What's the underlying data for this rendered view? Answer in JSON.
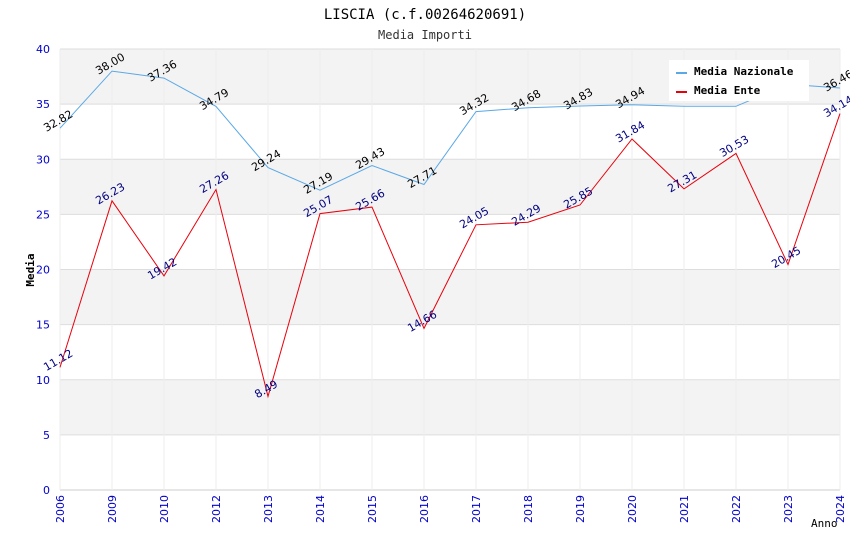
{
  "chart_data": {
    "type": "line",
    "title": "LISCIA (c.f.00264620691)",
    "subtitle": "Media Importi",
    "xlabel": "Anno",
    "ylabel": "Media",
    "ylim": [
      0,
      40
    ],
    "yticks": [
      "0",
      "5",
      "10",
      "15",
      "20",
      "25",
      "30",
      "35",
      "40"
    ],
    "categories": [
      "2006",
      "2009",
      "2010",
      "2012",
      "2013",
      "2014",
      "2015",
      "2016",
      "2017",
      "2018",
      "2019",
      "2020",
      "2021",
      "2022",
      "2023",
      "2024"
    ],
    "series": [
      {
        "name": "Media Nazionale",
        "color": "#5aa8e6",
        "label_color": "#000000",
        "values": [
          32.82,
          38.0,
          37.36,
          34.79,
          29.24,
          27.19,
          29.43,
          27.71,
          34.32,
          34.68,
          34.83,
          34.94,
          34.8,
          34.8,
          36.8,
          36.46
        ],
        "labels": [
          "32.82",
          "38.00",
          "37.36",
          "34.79",
          "29.24",
          "27.19",
          "29.43",
          "27.71",
          "34.32",
          "34.68",
          "34.83",
          "34.94",
          "",
          "",
          "",
          "36.46"
        ]
      },
      {
        "name": "Media Ente",
        "color": "#e8000b",
        "label_color": "#000080",
        "values": [
          11.12,
          26.23,
          19.42,
          27.26,
          8.49,
          25.07,
          25.66,
          14.66,
          24.05,
          24.29,
          25.85,
          31.84,
          27.31,
          30.53,
          20.45,
          34.14
        ],
        "labels": [
          "11.12",
          "26.23",
          "19.42",
          "27.26",
          "8.49",
          "25.07",
          "25.66",
          "14.66",
          "24.05",
          "24.29",
          "25.85",
          "31.84",
          "27.31",
          "30.53",
          "20.45",
          "34.14"
        ]
      }
    ],
    "legend_position": "top-right"
  }
}
